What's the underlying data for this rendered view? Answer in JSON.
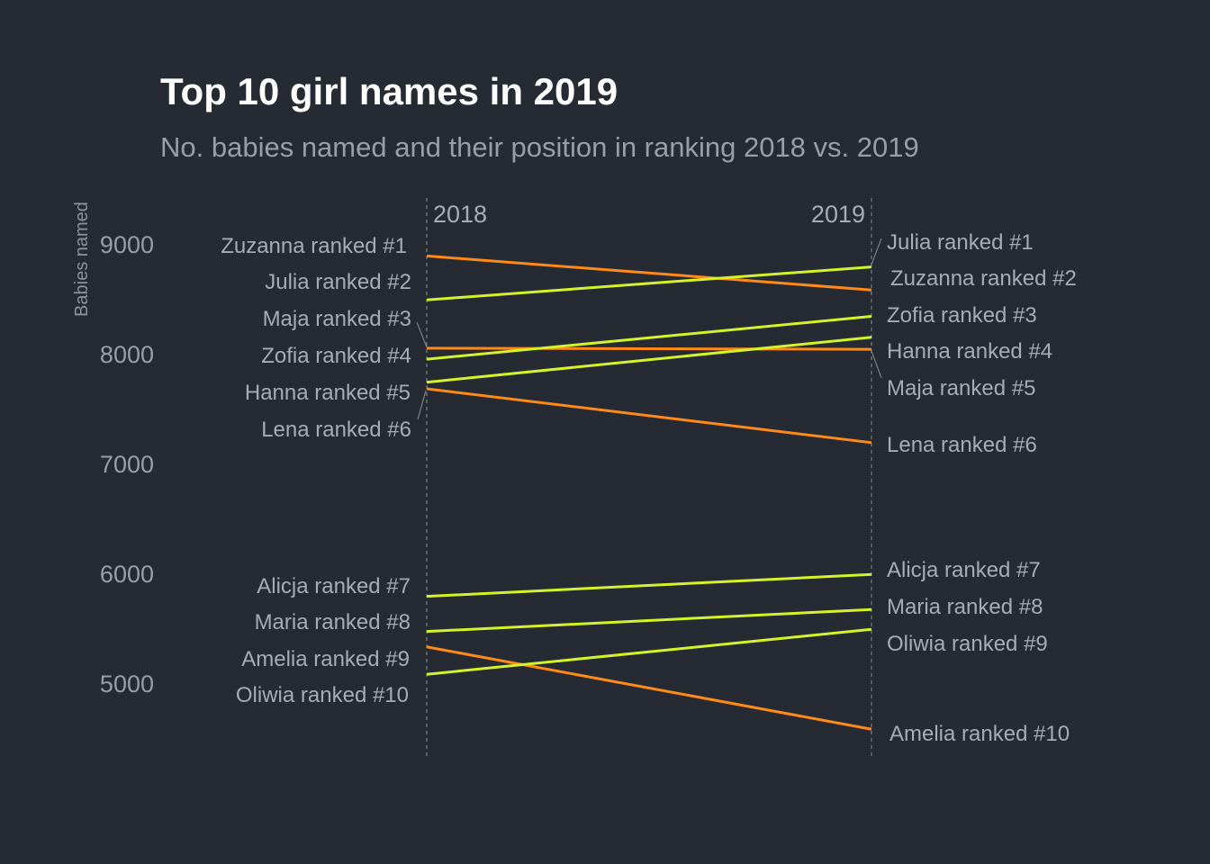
{
  "chart_data": {
    "type": "line",
    "subtype": "slopegraph",
    "title": "Top 10 girl names in 2019",
    "subtitle": "No. babies named and their position in ranking 2018 vs. 2019",
    "ylabel": "Babies named",
    "ylim": [
      4350,
      9450
    ],
    "yticks": [
      5000,
      6000,
      7000,
      8000,
      9000
    ],
    "x": [
      "2018",
      "2019"
    ],
    "colors": {
      "up": "#d4f32a",
      "down": "#ff8a17",
      "background": "#252a33"
    },
    "series": [
      {
        "name": "Zuzanna",
        "values": [
          8890,
          8580
        ],
        "direction": "down"
      },
      {
        "name": "Julia",
        "values": [
          8490,
          8790
        ],
        "direction": "up"
      },
      {
        "name": "Maja",
        "values": [
          8050,
          8040
        ],
        "direction": "down"
      },
      {
        "name": "Zofia",
        "values": [
          7950,
          8340
        ],
        "direction": "up"
      },
      {
        "name": "Hanna",
        "values": [
          7740,
          8150
        ],
        "direction": "up"
      },
      {
        "name": "Lena",
        "values": [
          7680,
          7190
        ],
        "direction": "down"
      },
      {
        "name": "Alicja",
        "values": [
          5790,
          5990
        ],
        "direction": "up"
      },
      {
        "name": "Maria",
        "values": [
          5470,
          5670
        ],
        "direction": "up"
      },
      {
        "name": "Amelia",
        "values": [
          5330,
          4580
        ],
        "direction": "down"
      },
      {
        "name": "Oliwia",
        "values": [
          5080,
          5490
        ],
        "direction": "up"
      }
    ],
    "labels_2018": [
      "Zuzanna ranked #1",
      "Julia ranked #2",
      "Maja ranked #3",
      "Zofia ranked #4",
      "Hanna ranked #5",
      "Lena ranked #6",
      "Alicja ranked #7",
      "Maria ranked #8",
      "Amelia ranked #9",
      "Oliwia ranked #10"
    ],
    "labels_2019": [
      "Julia ranked #1",
      "Zuzanna ranked #2",
      "Zofia ranked #3",
      "Hanna ranked #4",
      "Maja ranked #5",
      "Lena ranked #6",
      "Alicja ranked #7",
      "Maria ranked #8",
      "Oliwia ranked #9",
      "Amelia ranked #10"
    ]
  }
}
